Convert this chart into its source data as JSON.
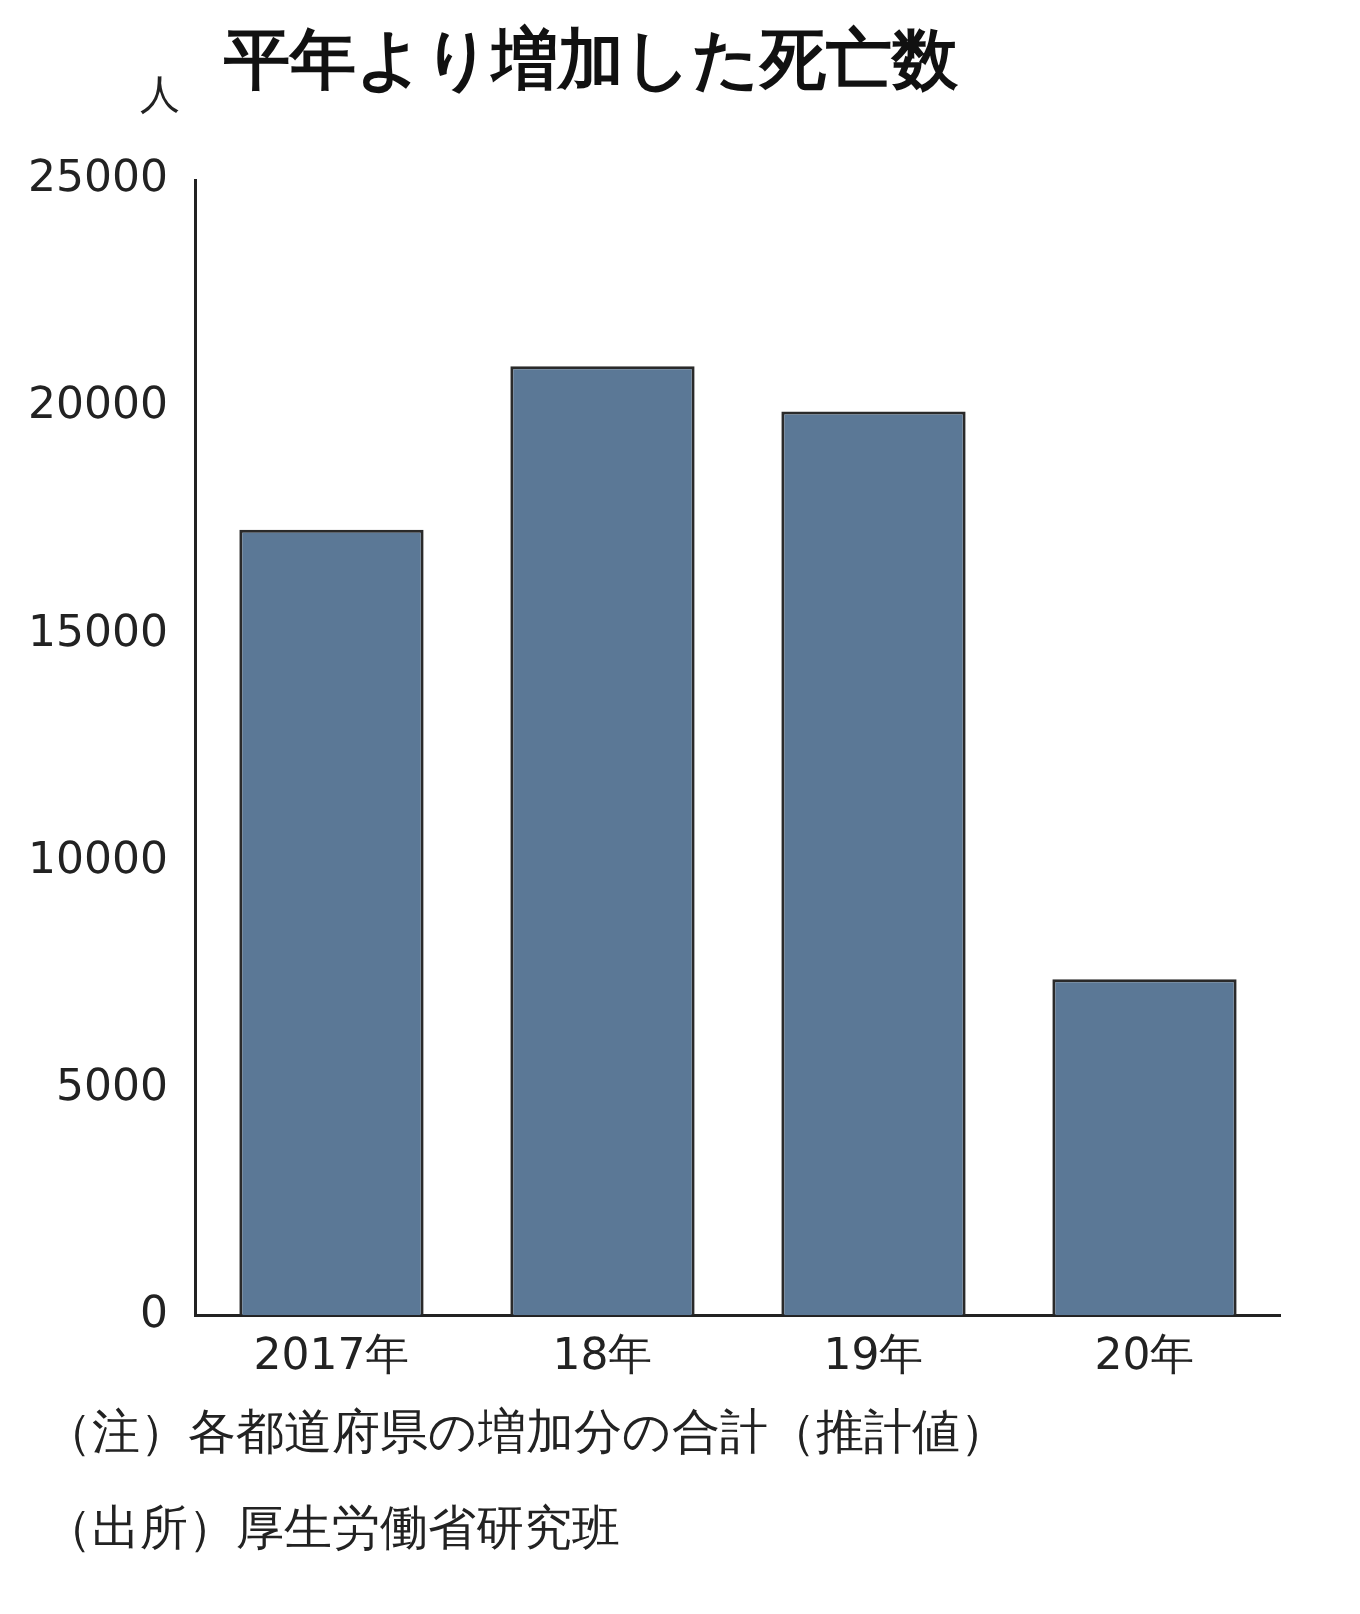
{
  "chart_data": {
    "type": "bar",
    "title": "平年より増加した死亡数",
    "ylabel": "人",
    "categories": [
      "2017年",
      "18年",
      "19年",
      "20年"
    ],
    "values": [
      17300,
      20900,
      19900,
      7400
    ],
    "color": "#5b7896",
    "ylim": [
      0,
      25000
    ],
    "yticks": [
      0,
      5000,
      10000,
      15000,
      20000,
      25000
    ],
    "grid": false,
    "legend": false,
    "annotations": [
      "（注）各都道府県の増加分の合計（推計値）",
      "（出所）厚生労働省研究班"
    ]
  }
}
